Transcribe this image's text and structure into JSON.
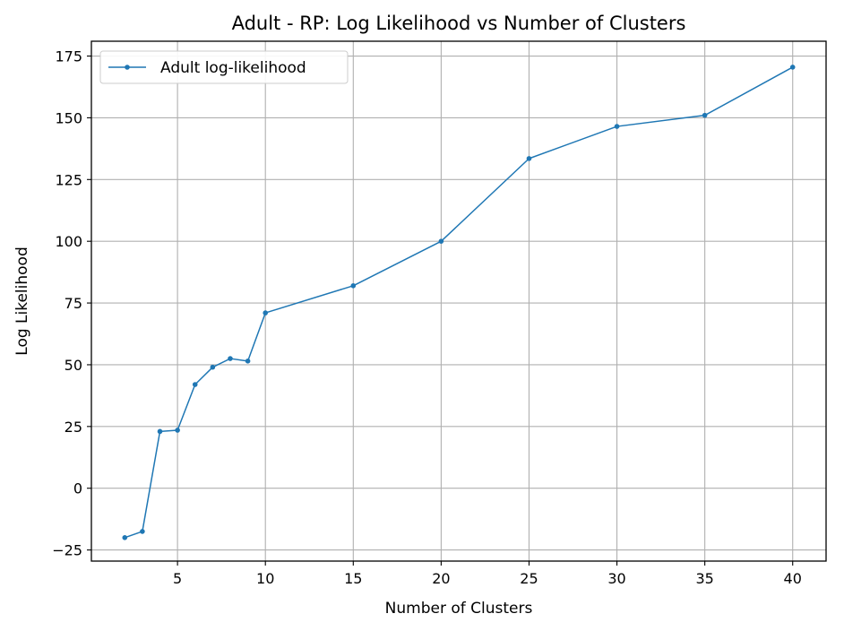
{
  "chart_data": {
    "type": "line",
    "title": "Adult - RP: Log Likelihood vs Number of Clusters",
    "xlabel": "Number of Clusters",
    "ylabel": "Log Likelihood",
    "xlim": [
      0.1,
      41.9
    ],
    "ylim": [
      -29.5,
      181
    ],
    "xticks": [
      5,
      10,
      15,
      20,
      25,
      30,
      35,
      40
    ],
    "yticks": [
      -25,
      0,
      25,
      50,
      75,
      100,
      125,
      150,
      175
    ],
    "grid": true,
    "legend_position": "top-left",
    "series": [
      {
        "name": "Adult log-likelihood",
        "color": "#1f77b4",
        "marker": "circle",
        "x": [
          2,
          3,
          4,
          5,
          6,
          7,
          8,
          9,
          10,
          15,
          20,
          25,
          30,
          35,
          40
        ],
        "y": [
          -20,
          -17.5,
          23,
          23.5,
          42,
          49,
          52.5,
          51.5,
          71,
          82,
          100,
          133.5,
          146.5,
          151,
          170.5
        ]
      }
    ]
  }
}
